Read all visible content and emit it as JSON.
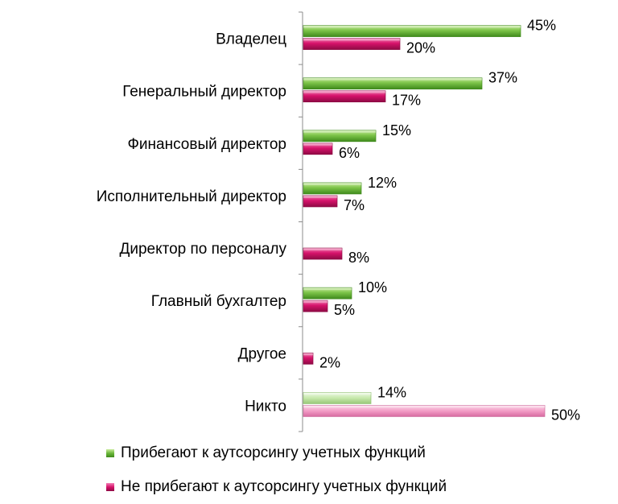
{
  "chart_data": {
    "type": "bar",
    "orientation": "horizontal",
    "categories": [
      "Владелец",
      "Генеральный директор",
      "Финансовый директор",
      "Исполнительный директор",
      "Директор по персоналу",
      "Главный бухгалтер",
      "Другое",
      "Никто"
    ],
    "series": [
      {
        "name": "Прибегают к аутсорсингу учетных функций",
        "color": "#6ab63a",
        "values": [
          45,
          37,
          15,
          12,
          null,
          10,
          null,
          14
        ],
        "labels": [
          "45%",
          "37%",
          "15%",
          "12%",
          "",
          "10%",
          "",
          "14%"
        ]
      },
      {
        "name": "Не прибегают к аутсорсингу учетных функций",
        "color": "#d6126a",
        "values": [
          20,
          17,
          6,
          7,
          8,
          5,
          2,
          50
        ],
        "labels": [
          "20%",
          "17%",
          "6%",
          "7%",
          "8%",
          "5%",
          "2%",
          "50%"
        ]
      }
    ],
    "highlight_category": "Никто",
    "highlight_colors": [
      "#bfe3a4",
      "#f08fbf"
    ],
    "xlim": [
      0,
      50
    ],
    "grid": false,
    "legend_position": "bottom-left"
  }
}
